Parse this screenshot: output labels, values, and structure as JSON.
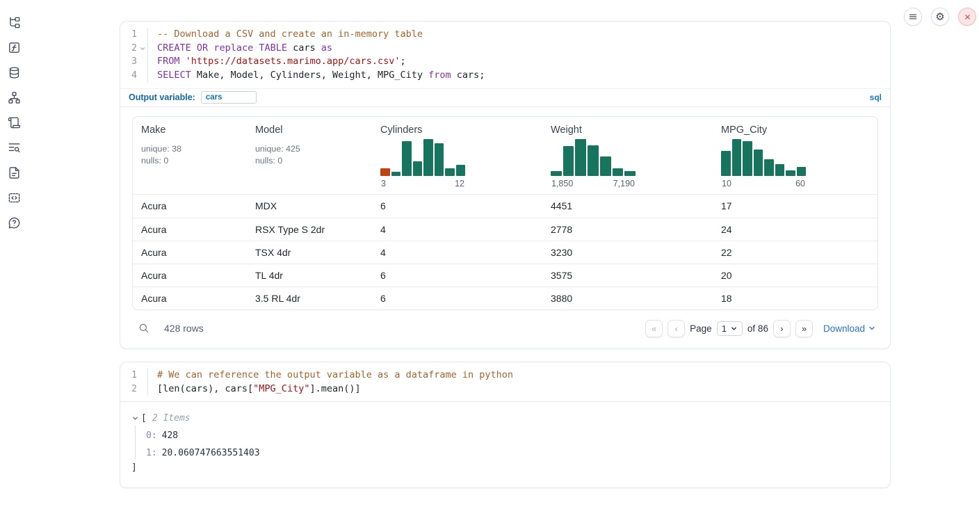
{
  "colors": {
    "hist_teal": "#17745f",
    "hist_highlight_orange": "#c2410c",
    "label_blue": "#14689e",
    "link_blue": "#2673d9",
    "close_red": "#d64c4c"
  },
  "sidebar": {
    "items": [
      {
        "icon": "file-tree-icon"
      },
      {
        "icon": "functions-icon"
      },
      {
        "icon": "datasources-icon"
      },
      {
        "icon": "dependency-graph-icon"
      },
      {
        "icon": "scratchpad-icon"
      },
      {
        "icon": "logs-search-icon"
      },
      {
        "icon": "documentation-icon"
      },
      {
        "icon": "snippets-icon"
      },
      {
        "icon": "help-icon"
      }
    ]
  },
  "cells": {
    "sql": {
      "language": "sql",
      "output_variable": {
        "label": "Output variable:",
        "value": "cars"
      },
      "lines": [
        {
          "num": "1",
          "fold": false,
          "tokens": [
            {
              "t": "-- Download a CSV and create an in-memory table",
              "c": "c"
            }
          ]
        },
        {
          "num": "2",
          "fold": true,
          "tokens": [
            {
              "t": "CREATE",
              "c": "k"
            },
            {
              "t": " ",
              "c": "p"
            },
            {
              "t": "OR",
              "c": "k"
            },
            {
              "t": " ",
              "c": "p"
            },
            {
              "t": "replace",
              "c": "k"
            },
            {
              "t": " ",
              "c": "p"
            },
            {
              "t": "TABLE",
              "c": "k"
            },
            {
              "t": " cars ",
              "c": "p"
            },
            {
              "t": "as",
              "c": "k"
            }
          ]
        },
        {
          "num": "3",
          "fold": false,
          "tokens": [
            {
              "t": "FROM",
              "c": "k"
            },
            {
              "t": " ",
              "c": "p"
            },
            {
              "t": "'https://datasets.marimo.app/cars.csv'",
              "c": "s"
            },
            {
              "t": ";",
              "c": "p"
            }
          ]
        },
        {
          "num": "4",
          "fold": false,
          "tokens": [
            {
              "t": "SELECT",
              "c": "k"
            },
            {
              "t": " Make, Model, Cylinders, Weight, MPG_City ",
              "c": "p"
            },
            {
              "t": "from",
              "c": "k"
            },
            {
              "t": " cars;",
              "c": "p"
            }
          ]
        }
      ]
    },
    "python": {
      "lines": [
        {
          "num": "1",
          "fold": false,
          "tokens": [
            {
              "t": "# We can reference the output variable as a dataframe in python",
              "c": "c"
            }
          ]
        },
        {
          "num": "2",
          "fold": false,
          "tokens": [
            {
              "t": "[len(cars), cars[",
              "c": "p"
            },
            {
              "t": "\"MPG_City\"",
              "c": "s"
            },
            {
              "t": "].mean()]",
              "c": "p"
            }
          ]
        }
      ]
    }
  },
  "table": {
    "columns": [
      {
        "name": "Make",
        "stats": [
          "unique: 38",
          "nulls: 0"
        ]
      },
      {
        "name": "Model",
        "stats": [
          "unique: 425",
          "nulls: 0"
        ]
      },
      {
        "name": "Cylinders",
        "hist": 0
      },
      {
        "name": "Weight",
        "hist": 1
      },
      {
        "name": "MPG_City",
        "hist": 2
      }
    ],
    "rows": [
      [
        "Acura",
        "MDX",
        "6",
        "4451",
        "17"
      ],
      [
        "Acura",
        "RSX Type S 2dr",
        "4",
        "2778",
        "24"
      ],
      [
        "Acura",
        "TSX 4dr",
        "4",
        "3230",
        "22"
      ],
      [
        "Acura",
        "TL 4dr",
        "6",
        "3575",
        "20"
      ],
      [
        "Acura",
        "3.5 RL 4dr",
        "6",
        "3880",
        "18"
      ]
    ],
    "footer": {
      "row_count": "428 rows",
      "page_label": "Page",
      "page_value": "1",
      "of_label": "of 86",
      "download_label": "Download",
      "first_symbol": "«",
      "prev_symbol": "‹",
      "next_symbol": "›",
      "last_symbol": "»"
    }
  },
  "chart_data": [
    {
      "type": "bar",
      "subtype": "histogram",
      "title": "Cylinders distribution",
      "x_min_label": "3",
      "x_max_label": "12",
      "x_range": [
        3,
        12
      ],
      "relative_heights": [
        0.21,
        0.12,
        0.95,
        0.4,
        1.0,
        0.88,
        0.21,
        0.3
      ],
      "bar_color": "#17745f",
      "highlight": {
        "bar_index": 0,
        "color": "#c2410c"
      }
    },
    {
      "type": "bar",
      "subtype": "histogram",
      "title": "Weight distribution",
      "x_min_label": "1,850",
      "x_max_label": "7,190",
      "x_range": [
        1850,
        7190
      ],
      "relative_heights": [
        0.13,
        0.81,
        1.0,
        0.83,
        0.53,
        0.2,
        0.13
      ],
      "bar_color": "#17745f"
    },
    {
      "type": "bar",
      "subtype": "histogram",
      "title": "MPG_City distribution",
      "x_min_label": "10",
      "x_max_label": "60",
      "x_range": [
        10,
        60
      ],
      "relative_heights": [
        0.68,
        1.0,
        0.94,
        0.72,
        0.45,
        0.32,
        0.16,
        0.24
      ],
      "bar_color": "#17745f"
    }
  ],
  "python_output": {
    "bracket_open": "[",
    "items_label": "2 Items",
    "entries": [
      {
        "key": "0",
        "value": "428"
      },
      {
        "key": "1",
        "value": "20.060747663551403"
      }
    ],
    "bracket_close": "]"
  }
}
